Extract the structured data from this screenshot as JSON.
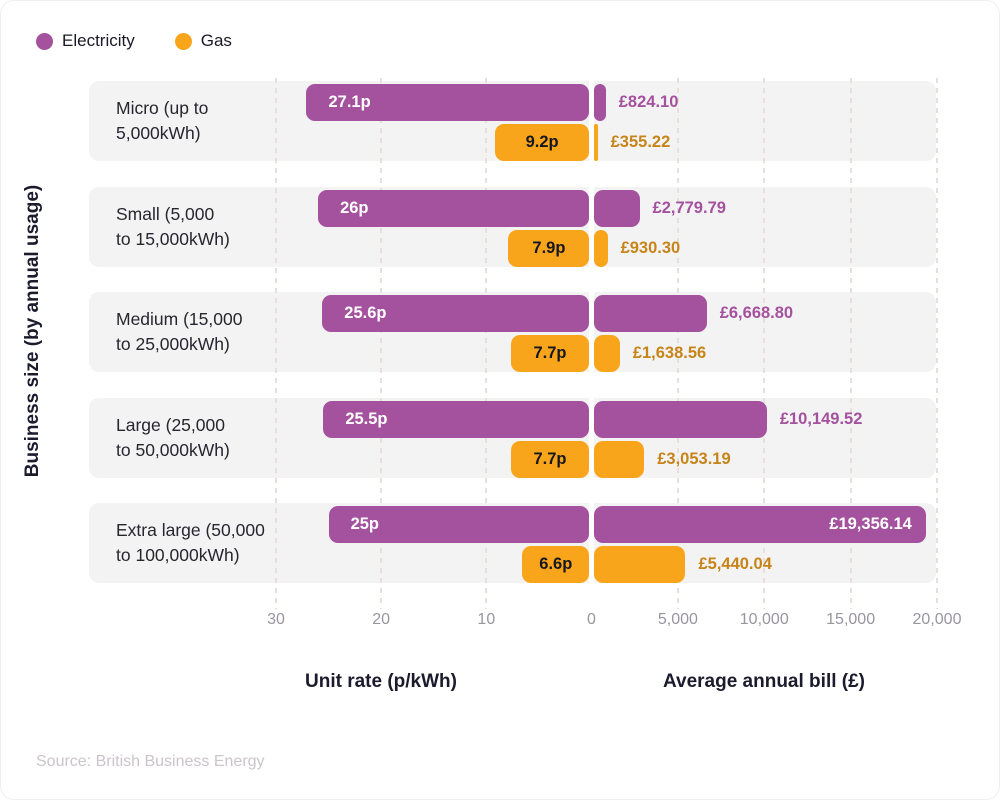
{
  "legend": [
    {
      "label": "Electricity",
      "color": "#a4519e"
    },
    {
      "label": "Gas",
      "color": "#f9a51b"
    }
  ],
  "source": "Source: British Business Energy",
  "chart_data": {
    "type": "bar",
    "variant": "diverging horizontal bars: unit rate to the left of zero, annual bill to the right",
    "ylabel": "Business size (by annual usage)",
    "categories": [
      "Micro (up to 5,000kWh)",
      "Small (5,000 to 15,000kWh)",
      "Medium (15,000 to 25,000kWh)",
      "Large (25,000 to 50,000kWh)",
      "Extra large (50,000 to 100,000kWh)"
    ],
    "category_label_lines": [
      [
        "Micro (up to",
        "5,000kWh)"
      ],
      [
        "Small (5,000",
        "to 15,000kWh)"
      ],
      [
        "Medium (15,000",
        "to 25,000kWh)"
      ],
      [
        "Large (25,000",
        "to 50,000kWh)"
      ],
      [
        "Extra large (50,000",
        "to 100,000kWh)"
      ]
    ],
    "series": [
      {
        "name": "Electricity",
        "color": "#a4519e",
        "label_text_color_on_bar": "#ffffff",
        "bill_text_color": "#a4519e",
        "unit_rate": {
          "values": [
            27.1,
            26,
            25.6,
            25.5,
            25
          ],
          "labels": [
            "27.1p",
            "26p",
            "25.6p",
            "25.5p",
            "25p"
          ]
        },
        "annual_bill": {
          "values": [
            824.1,
            2779.79,
            6668.8,
            10149.52,
            19356.14
          ],
          "labels": [
            "£824.10",
            "£2,779.79",
            "£6,668.80",
            "£10,149.52",
            "£19,356.14"
          ]
        }
      },
      {
        "name": "Gas",
        "color": "#f9a51b",
        "label_text_color_on_bar": "#17171f",
        "bill_text_color": "#c78419",
        "unit_rate": {
          "values": [
            9.2,
            7.9,
            7.7,
            7.7,
            6.6
          ],
          "labels": [
            "9.2p",
            "7.9p",
            "7.7p",
            "7.7p",
            "6.6p"
          ]
        },
        "annual_bill": {
          "values": [
            355.22,
            930.3,
            1638.56,
            3053.19,
            5440.04
          ],
          "labels": [
            "£355.22",
            "£930.30",
            "£1,638.56",
            "£3,053.19",
            "£5,440.04"
          ]
        }
      }
    ],
    "left_axis": {
      "title": "Unit rate (p/kWh)",
      "range": [
        0,
        30
      ],
      "tick_values": [
        30,
        20,
        10,
        0
      ],
      "tick_labels": [
        "30",
        "20",
        "10",
        "0"
      ]
    },
    "right_axis": {
      "title": "Average annual bill (£)",
      "range": [
        0,
        20000
      ],
      "tick_values": [
        5000,
        10000,
        15000,
        20000
      ],
      "tick_labels": [
        "5,000",
        "10,000",
        "15,000",
        "20,000"
      ]
    },
    "grid": "dashed vertical gridlines at each tick",
    "legend_position": "top-left"
  }
}
